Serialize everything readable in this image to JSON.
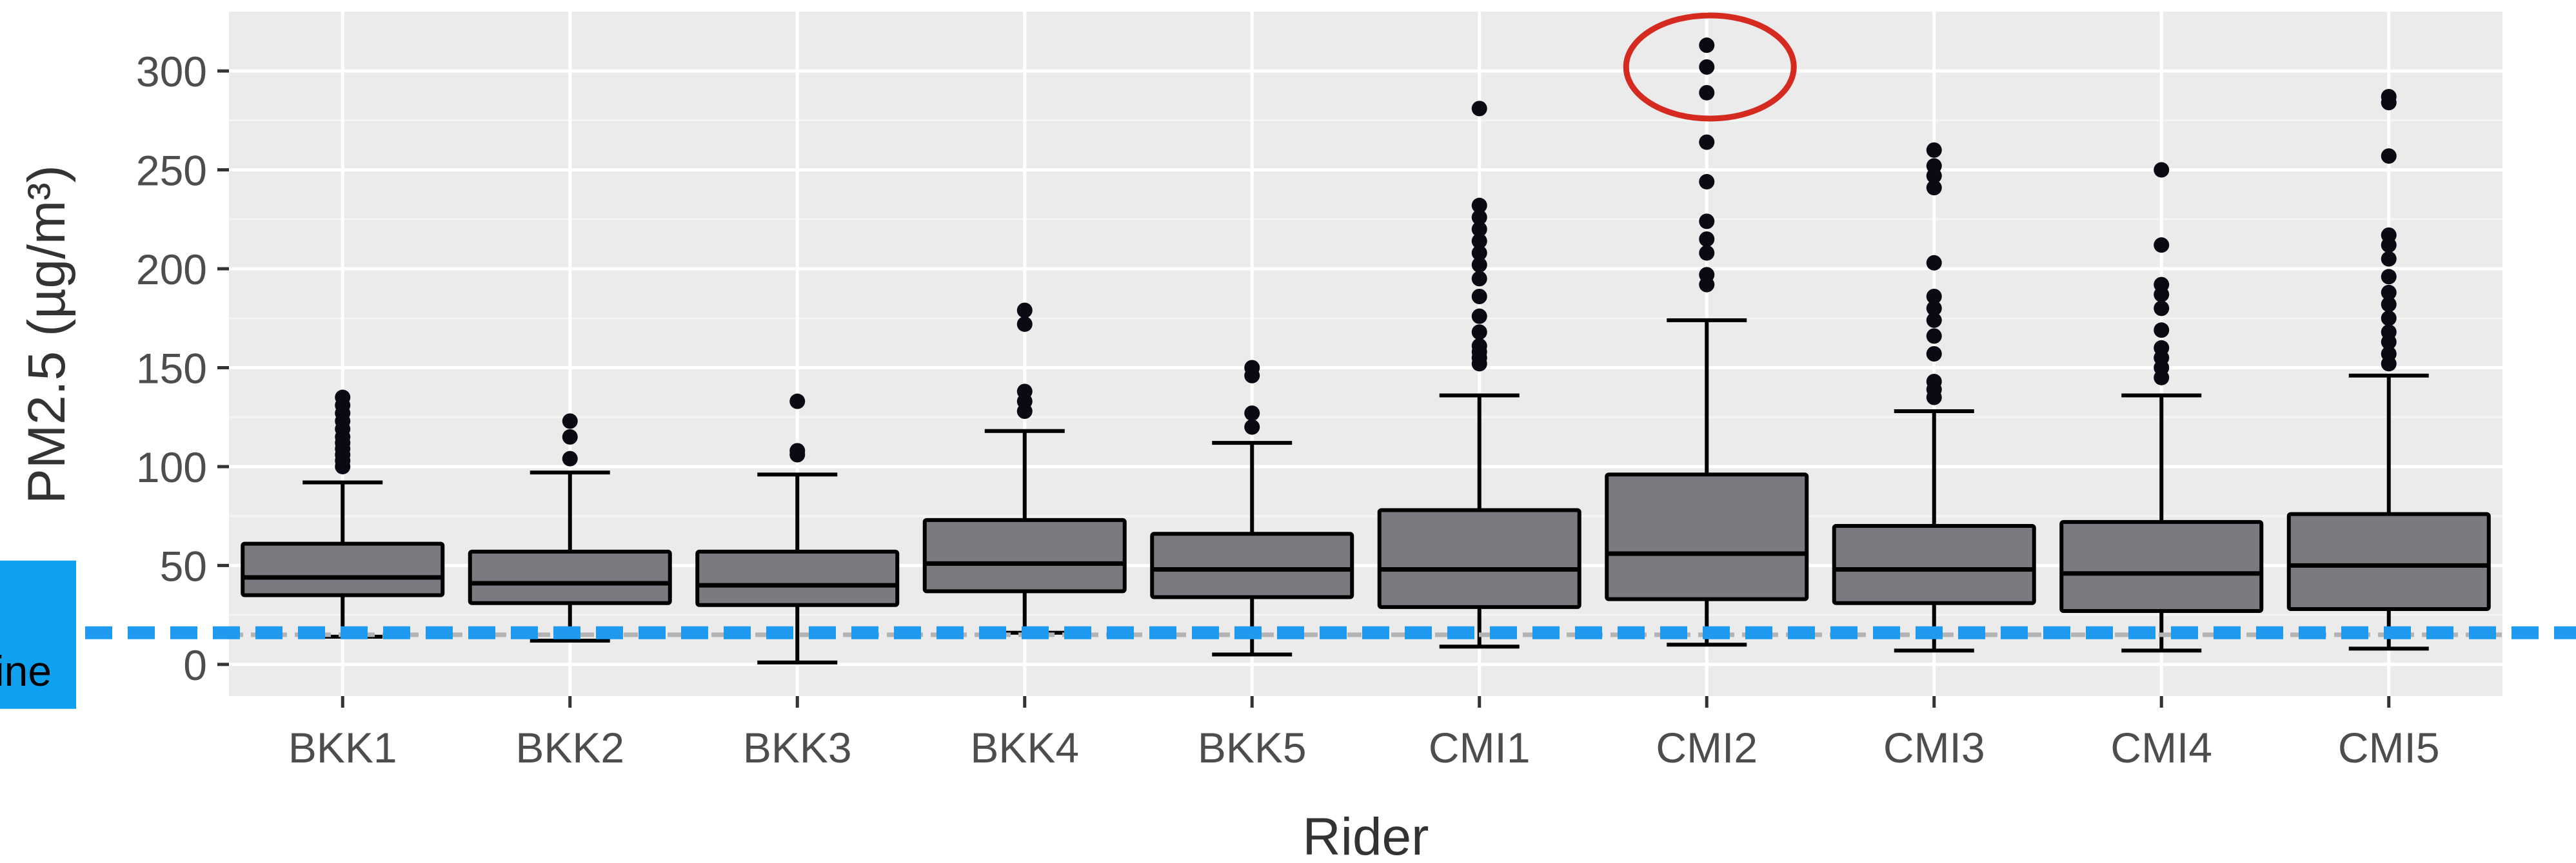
{
  "chart_data": {
    "type": "box",
    "xlabel": "Rider",
    "ylabel": "PM2.5 (µg/m³)",
    "ylim": [
      -16,
      330
    ],
    "yticks": [
      0,
      50,
      100,
      150,
      200,
      250,
      300
    ],
    "categories": [
      "BKK1",
      "BKK2",
      "BKK3",
      "BKK4",
      "BKK5",
      "CMI1",
      "CMI2",
      "CMI3",
      "CMI4",
      "CMI5"
    ],
    "boxes": [
      {
        "category": "BKK1",
        "whisker_low": 14,
        "q1": 35,
        "median": 44,
        "q3": 61,
        "whisker_high": 92,
        "outliers": [
          100,
          103,
          106,
          109,
          112,
          115,
          119,
          123,
          127,
          131,
          135
        ]
      },
      {
        "category": "BKK2",
        "whisker_low": 12,
        "q1": 31,
        "median": 41,
        "q3": 57,
        "whisker_high": 97,
        "outliers": [
          104,
          115,
          123
        ]
      },
      {
        "category": "BKK3",
        "whisker_low": 1,
        "q1": 30,
        "median": 40,
        "q3": 57,
        "whisker_high": 96,
        "outliers": [
          106,
          108,
          133
        ]
      },
      {
        "category": "BKK4",
        "whisker_low": 16,
        "q1": 37,
        "median": 51,
        "q3": 73,
        "whisker_high": 118,
        "outliers": [
          128,
          133,
          138,
          172,
          179
        ]
      },
      {
        "category": "BKK5",
        "whisker_low": 5,
        "q1": 34,
        "median": 48,
        "q3": 66,
        "whisker_high": 112,
        "outliers": [
          120,
          127,
          146,
          150
        ]
      },
      {
        "category": "CMI1",
        "whisker_low": 9,
        "q1": 29,
        "median": 48,
        "q3": 78,
        "whisker_high": 136,
        "outliers": [
          152,
          155,
          158,
          161,
          168,
          176,
          186,
          195,
          202,
          208,
          214,
          220,
          226,
          232,
          281
        ]
      },
      {
        "category": "CMI2",
        "whisker_low": 10,
        "q1": 33,
        "median": 56,
        "q3": 96,
        "whisker_high": 174,
        "outliers": [
          192,
          197,
          208,
          215,
          224,
          244,
          264,
          289,
          302,
          313
        ]
      },
      {
        "category": "CMI3",
        "whisker_low": 7,
        "q1": 31,
        "median": 48,
        "q3": 70,
        "whisker_high": 128,
        "outliers": [
          135,
          139,
          143,
          157,
          166,
          174,
          180,
          186,
          203,
          241,
          247,
          252,
          260
        ]
      },
      {
        "category": "CMI4",
        "whisker_low": 7,
        "q1": 27,
        "median": 46,
        "q3": 72,
        "whisker_high": 136,
        "outliers": [
          145,
          150,
          155,
          160,
          169,
          180,
          187,
          192,
          212,
          250
        ]
      },
      {
        "category": "CMI5",
        "whisker_low": 8,
        "q1": 28,
        "median": 50,
        "q3": 76,
        "whisker_high": 146,
        "outliers": [
          152,
          157,
          163,
          168,
          175,
          182,
          188,
          196,
          205,
          212,
          217,
          257,
          284,
          287
        ]
      }
    ],
    "reference_lines": [
      {
        "y": 15,
        "style": "dashed",
        "color": "#b3b3b3"
      },
      {
        "y": 16,
        "style": "dashed",
        "color": "#1e9bf0",
        "label": "ine"
      }
    ],
    "highlight": {
      "category": "CMI2",
      "shape": "ellipse",
      "color": "#d42a1f",
      "y_range": [
        288,
        316
      ]
    },
    "grid": true,
    "colors": {
      "panel": "#ebebeb",
      "grid_major": "#ffffff",
      "grid_minor": "#f5f5f5",
      "box_fill": "#7a7a80",
      "box_stroke": "#000000",
      "outlier": "#0a0a14",
      "tick_text": "#4d4d4d",
      "axis_title": "#333333",
      "label_box": "#0fa0f0"
    }
  }
}
